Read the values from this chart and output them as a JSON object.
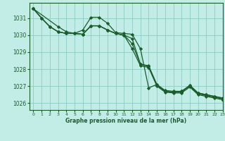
{
  "title": "Graphe pression niveau de la mer (hPa)",
  "bg_color": "#c2ece6",
  "grid_color": "#8eccc4",
  "line_color": "#1a5c2a",
  "xlim": [
    -0.5,
    23
  ],
  "ylim": [
    1025.6,
    1031.9
  ],
  "yticks": [
    1026,
    1027,
    1028,
    1029,
    1030,
    1031
  ],
  "xticks": [
    0,
    1,
    2,
    3,
    4,
    5,
    6,
    7,
    8,
    9,
    10,
    11,
    12,
    13,
    14,
    15,
    16,
    17,
    18,
    19,
    20,
    21,
    22,
    23
  ],
  "series": [
    {
      "x": [
        0,
        1,
        2,
        3,
        4,
        5,
        6,
        7,
        8,
        9,
        10,
        11,
        12,
        13,
        14,
        15,
        16,
        17,
        18,
        19,
        20,
        21,
        22,
        23
      ],
      "y": [
        1031.55,
        1031.0,
        1030.5,
        1030.2,
        1030.1,
        1030.1,
        1030.05,
        1030.55,
        1030.55,
        1030.3,
        1030.1,
        1030.0,
        1029.2,
        1028.2,
        1028.1,
        1027.0,
        1026.65,
        1026.6,
        1026.6,
        1026.95,
        1026.5,
        1026.4,
        1026.3,
        1026.2
      ],
      "has_markers": true
    },
    {
      "x": [
        0,
        1,
        2,
        3,
        4,
        5,
        6,
        7,
        8,
        9,
        10,
        11,
        12,
        13,
        14,
        15,
        16,
        17,
        18,
        19,
        20,
        21,
        22,
        23
      ],
      "y": [
        1031.55,
        1031.0,
        1030.5,
        1030.2,
        1030.1,
        1030.1,
        1030.05,
        1030.55,
        1030.55,
        1030.3,
        1030.1,
        1030.0,
        1029.5,
        1028.3,
        1028.15,
        1027.05,
        1026.7,
        1026.65,
        1026.7,
        1027.0,
        1026.55,
        1026.45,
        1026.35,
        1026.25
      ],
      "has_markers": true
    },
    {
      "x": [
        0,
        1,
        2,
        3,
        4,
        5,
        6,
        7,
        8,
        9,
        10,
        11,
        12,
        13,
        14,
        15,
        16,
        17,
        18,
        19,
        20,
        21,
        22,
        23
      ],
      "y": [
        1031.55,
        1031.0,
        1030.5,
        1030.2,
        1030.1,
        1030.1,
        1030.05,
        1030.55,
        1030.55,
        1030.3,
        1030.1,
        1030.0,
        1029.8,
        1028.3,
        1028.2,
        1027.1,
        1026.75,
        1026.7,
        1026.7,
        1027.05,
        1026.6,
        1026.5,
        1026.4,
        1026.3
      ],
      "has_markers": true
    },
    {
      "x": [
        0,
        3,
        4,
        5,
        6,
        7,
        8,
        9,
        10,
        11,
        12,
        13,
        14,
        15,
        16,
        17,
        18,
        19,
        20,
        21,
        22,
        23
      ],
      "y": [
        1031.55,
        1030.5,
        1030.2,
        1030.1,
        1030.3,
        1031.05,
        1031.05,
        1030.7,
        1030.15,
        1030.1,
        1030.05,
        1029.2,
        1026.9,
        1027.1,
        1026.7,
        1026.65,
        1026.65,
        1027.05,
        1026.6,
        1026.5,
        1026.4,
        1026.3
      ],
      "has_markers": true
    }
  ],
  "marker": "D",
  "marker_size": 2.2,
  "linewidth": 0.9
}
